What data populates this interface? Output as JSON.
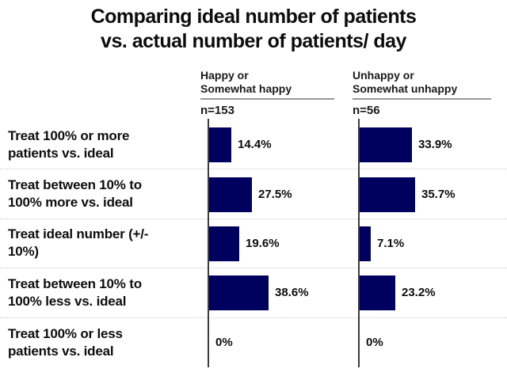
{
  "title": {
    "text": "Comparing ideal number of patients\nvs. actual number of patients/ day"
  },
  "chart_data": {
    "type": "bar",
    "orientation": "horizontal",
    "title": "Comparing ideal number of patients vs. actual number of patients/ day",
    "categories": [
      "Treat 100% or more\npatients vs. ideal",
      "Treat between 10% to\n100% more vs. ideal",
      "Treat ideal number (+/-\n10%)",
      "Treat between 10% to\n100% less vs. ideal",
      "Treat 100% or less\npatients vs. ideal"
    ],
    "series": [
      {
        "name": "Happy or\nSomewhat happy",
        "n_label": "n=153",
        "values": [
          14.4,
          27.5,
          19.6,
          38.6,
          0
        ],
        "value_labels": [
          "14.4%",
          "27.5%",
          "19.6%",
          "38.6%",
          "0%"
        ]
      },
      {
        "name": "Unhappy or\nSomewhat unhappy",
        "n_label": "n=56",
        "values": [
          33.9,
          35.7,
          7.1,
          23.2,
          0
        ],
        "value_labels": [
          "33.9%",
          "35.7%",
          "7.1%",
          "23.2%",
          "0%"
        ]
      }
    ],
    "xlim": [
      0,
      100
    ],
    "grid": "dotted horizontal separators between rows",
    "legend_position": "column headers above each bar group"
  },
  "colors": {
    "bar": "#00015e",
    "axis": "#3c3c3c",
    "gridline": "#c9c9c9",
    "header_underline": "#999999",
    "text": "#0d0d0d",
    "background": "#ffffff"
  }
}
